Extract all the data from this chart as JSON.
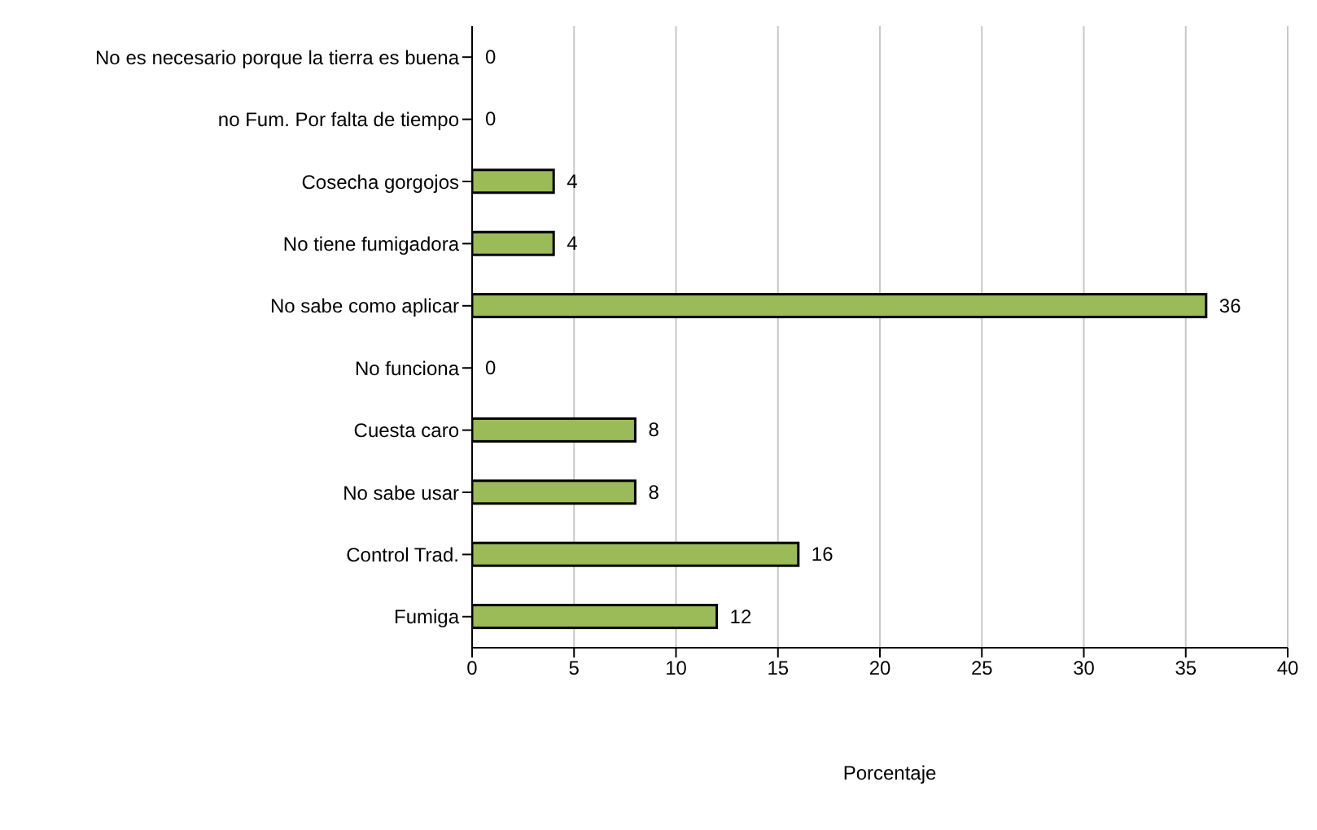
{
  "chart_data": {
    "type": "bar",
    "orientation": "horizontal",
    "xlabel": "Porcentaje",
    "categories": [
      "No es necesario porque la tierra es buena",
      "no Fum. Por falta de tiempo",
      "Cosecha gorgojos",
      "No tiene fumigadora",
      "No sabe como aplicar",
      "No funciona",
      "Cuesta caro",
      "No sabe usar",
      "Control Trad.",
      "Fumiga"
    ],
    "values": [
      0,
      0,
      4,
      4,
      36,
      0,
      8,
      8,
      16,
      12
    ],
    "color": "#9bbb59",
    "xlim": [
      0,
      40
    ],
    "xticks": [
      0,
      5,
      10,
      15,
      20,
      25,
      30,
      35,
      40
    ],
    "grid": "x",
    "data_labels": true
  }
}
